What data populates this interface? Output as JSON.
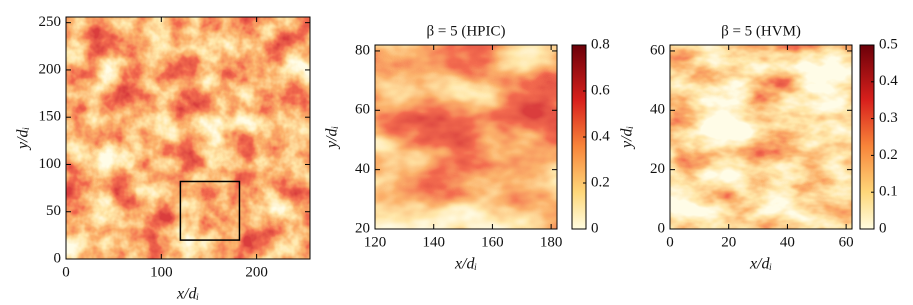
{
  "chart_data": [
    {
      "type": "heatmap",
      "xlabel": "x/dᵢ",
      "ylabel": "y/dᵢ",
      "xlim": [
        0,
        256
      ],
      "xticks": [
        0,
        100,
        200
      ],
      "ylim": [
        0,
        256
      ],
      "yticks": [
        0,
        50,
        100,
        150,
        200,
        250
      ],
      "inset_box": {
        "x": [
          120,
          182
        ],
        "y": [
          20,
          82
        ]
      }
    },
    {
      "type": "heatmap",
      "title": "β = 5 (HPIC)",
      "xlabel": "x/dᵢ",
      "ylabel": "y/dᵢ",
      "xlim": [
        120,
        182
      ],
      "xticks": [
        120,
        140,
        160,
        180
      ],
      "ylim": [
        20,
        82
      ],
      "yticks": [
        20,
        40,
        60,
        80
      ],
      "clim": [
        0,
        0.8
      ],
      "cticks": [
        0,
        0.2,
        0.4,
        0.6,
        0.8
      ]
    },
    {
      "type": "heatmap",
      "title": "β = 5 (HVM)",
      "xlabel": "x/dᵢ",
      "ylabel": "y/dᵢ",
      "xlim": [
        0,
        62
      ],
      "xticks": [
        0,
        20,
        40,
        60
      ],
      "ylim": [
        0,
        62
      ],
      "yticks": [
        0,
        20,
        40,
        60
      ],
      "clim": [
        0,
        0.5
      ],
      "cticks": [
        0,
        0.1,
        0.2,
        0.3,
        0.4,
        0.5
      ]
    }
  ]
}
